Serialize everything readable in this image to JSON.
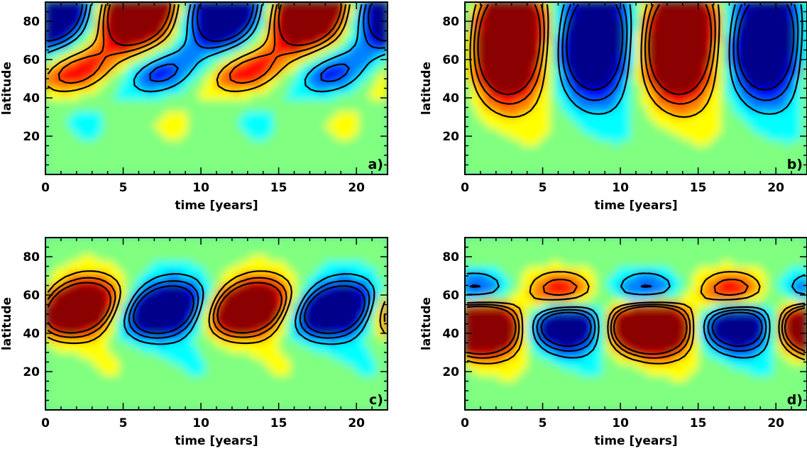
{
  "colors": {
    "colormap": [
      "#00008b",
      "#0000ff",
      "#0080ff",
      "#00ffff",
      "#80ff80",
      "#ffff00",
      "#ff8000",
      "#ff0000",
      "#8b0000"
    ],
    "contour": "#000000",
    "frame": "#000000"
  },
  "chart_data": [
    {
      "id": "a",
      "type": "heatmap",
      "panel_label": "a)",
      "xlabel": "time [years]",
      "ylabel": "latitude",
      "xlim": [
        0,
        22
      ],
      "ylim": [
        0,
        90
      ],
      "xticks": [
        0,
        5,
        10,
        15,
        20
      ],
      "yticks": [
        20,
        40,
        60,
        80
      ],
      "period_years": 11,
      "positive_contours": "solid",
      "negative_contours": "dashed",
      "features": [
        {
          "sign": 1,
          "t": 6.0,
          "lat": 86,
          "amp": 1.0
        },
        {
          "sign": -1,
          "t": 0.6,
          "lat": 86,
          "amp": 0.85
        },
        {
          "sign": -1,
          "t": 11.6,
          "lat": 86,
          "amp": 0.85
        },
        {
          "sign": 1,
          "t": 17.0,
          "lat": 86,
          "amp": 1.0
        },
        {
          "sign": 1,
          "t": 1.9,
          "lat": 54,
          "amp": 0.5
        },
        {
          "sign": -1,
          "t": 7.4,
          "lat": 53,
          "amp": 0.45
        },
        {
          "sign": 1,
          "t": 12.9,
          "lat": 54,
          "amp": 0.5
        },
        {
          "sign": -1,
          "t": 18.4,
          "lat": 53,
          "amp": 0.45
        }
      ]
    },
    {
      "id": "b",
      "type": "heatmap",
      "panel_label": "b)",
      "xlabel": "time [years]",
      "ylabel": "latitude",
      "xlim": [
        0,
        22
      ],
      "ylim": [
        0,
        90
      ],
      "xticks": [
        0,
        5,
        10,
        15,
        20
      ],
      "yticks": [
        20,
        40,
        60,
        80
      ],
      "period_years": 11,
      "positive_contours": "solid",
      "negative_contours": "dashed",
      "features": [
        {
          "sign": 1,
          "t": 2.8,
          "lat": 70,
          "amp": 1.0
        },
        {
          "sign": -1,
          "t": 8.3,
          "lat": 70,
          "amp": 0.85
        },
        {
          "sign": 1,
          "t": 13.8,
          "lat": 70,
          "amp": 1.0
        },
        {
          "sign": -1,
          "t": 19.3,
          "lat": 70,
          "amp": 0.85
        }
      ]
    },
    {
      "id": "c",
      "type": "heatmap",
      "panel_label": "c)",
      "xlabel": "time [years]",
      "ylabel": "latitude",
      "xlim": [
        0,
        22
      ],
      "ylim": [
        0,
        90
      ],
      "xticks": [
        0,
        5,
        10,
        15,
        20
      ],
      "yticks": [
        20,
        40,
        60,
        80
      ],
      "period_years": 11,
      "positive_contours": "solid",
      "negative_contours": "dashed",
      "features": [
        {
          "sign": 1,
          "t": 2.0,
          "lat": 53,
          "amp": 1.0
        },
        {
          "sign": -1,
          "t": 7.5,
          "lat": 52,
          "amp": 0.9
        },
        {
          "sign": 1,
          "t": 13.0,
          "lat": 53,
          "amp": 1.0
        },
        {
          "sign": -1,
          "t": 18.5,
          "lat": 52,
          "amp": 0.9
        }
      ]
    },
    {
      "id": "d",
      "type": "heatmap",
      "panel_label": "d)",
      "xlabel": "time [years]",
      "ylabel": "latitude",
      "xlim": [
        0,
        22
      ],
      "ylim": [
        0,
        90
      ],
      "xticks": [
        0,
        5,
        10,
        15,
        20
      ],
      "yticks": [
        20,
        40,
        60,
        80
      ],
      "period_years": 11,
      "positive_contours": "solid",
      "negative_contours": "dashed",
      "features": [
        {
          "sign": -1,
          "t": 0.8,
          "lat": 60,
          "amp": 0.55
        },
        {
          "sign": 1,
          "t": 6.3,
          "lat": 60,
          "amp": 0.6
        },
        {
          "sign": -1,
          "t": 11.8,
          "lat": 60,
          "amp": 0.55
        },
        {
          "sign": 1,
          "t": 17.3,
          "lat": 60,
          "amp": 0.6
        },
        {
          "sign": 1,
          "t": 1.0,
          "lat": 44,
          "amp": 1.0
        },
        {
          "sign": -1,
          "t": 6.5,
          "lat": 45,
          "amp": 0.9
        },
        {
          "sign": 1,
          "t": 11.9,
          "lat": 44,
          "amp": 1.0
        },
        {
          "sign": -1,
          "t": 17.4,
          "lat": 45,
          "amp": 0.9
        },
        {
          "sign": 1,
          "t": 22.4,
          "lat": 44,
          "amp": 1.0
        }
      ]
    }
  ]
}
